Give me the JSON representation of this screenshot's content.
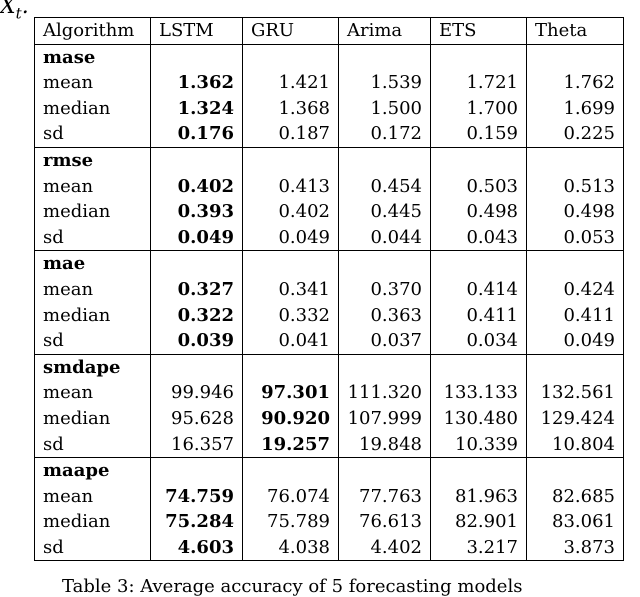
{
  "top_fragment": "X",
  "top_fragment_sub": "t",
  "top_fragment_punct": ".",
  "table": {
    "headers": [
      "Algorithm",
      "LSTM",
      "GRU",
      "Arima",
      "ETS",
      "Theta"
    ],
    "sections": [
      {
        "name": "mase",
        "rows": [
          {
            "label": "mean",
            "values": [
              "1.362",
              "1.421",
              "1.539",
              "1.721",
              "1.762"
            ],
            "bold_index": 0
          },
          {
            "label": "median",
            "values": [
              "1.324",
              "1.368",
              "1.500",
              "1.700",
              "1.699"
            ],
            "bold_index": 0
          },
          {
            "label": "sd",
            "values": [
              "0.176",
              "0.187",
              "0.172",
              "0.159",
              "0.225"
            ],
            "bold_index": 0
          }
        ]
      },
      {
        "name": "rmse",
        "rows": [
          {
            "label": "mean",
            "values": [
              "0.402",
              "0.413",
              "0.454",
              "0.503",
              "0.513"
            ],
            "bold_index": 0
          },
          {
            "label": "median",
            "values": [
              "0.393",
              "0.402",
              "0.445",
              "0.498",
              "0.498"
            ],
            "bold_index": 0
          },
          {
            "label": "sd",
            "values": [
              "0.049",
              "0.049",
              "0.044",
              "0.043",
              "0.053"
            ],
            "bold_index": 0
          }
        ]
      },
      {
        "name": "mae",
        "rows": [
          {
            "label": "mean",
            "values": [
              "0.327",
              "0.341",
              "0.370",
              "0.414",
              "0.424"
            ],
            "bold_index": 0
          },
          {
            "label": "median",
            "values": [
              "0.322",
              "0.332",
              "0.363",
              "0.411",
              "0.411"
            ],
            "bold_index": 0
          },
          {
            "label": "sd",
            "values": [
              "0.039",
              "0.041",
              "0.037",
              "0.034",
              "0.049"
            ],
            "bold_index": 0
          }
        ]
      },
      {
        "name": "smdape",
        "rows": [
          {
            "label": "mean",
            "values": [
              "99.946",
              "97.301",
              "111.320",
              "133.133",
              "132.561"
            ],
            "bold_index": 1
          },
          {
            "label": "median",
            "values": [
              "95.628",
              "90.920",
              "107.999",
              "130.480",
              "129.424"
            ],
            "bold_index": 1
          },
          {
            "label": "sd",
            "values": [
              "16.357",
              "19.257",
              "19.848",
              "10.339",
              "10.804"
            ],
            "bold_index": 1
          }
        ]
      },
      {
        "name": "maape",
        "rows": [
          {
            "label": "mean",
            "values": [
              "74.759",
              "76.074",
              "77.763",
              "81.963",
              "82.685"
            ],
            "bold_index": 0
          },
          {
            "label": "median",
            "values": [
              "75.284",
              "75.789",
              "76.613",
              "82.901",
              "83.061"
            ],
            "bold_index": 0
          },
          {
            "label": "sd",
            "values": [
              "4.603",
              "4.038",
              "4.402",
              "3.217",
              "3.873"
            ],
            "bold_index": 0
          }
        ]
      }
    ]
  },
  "caption": "Table 3: Average accuracy of 5 forecasting models"
}
